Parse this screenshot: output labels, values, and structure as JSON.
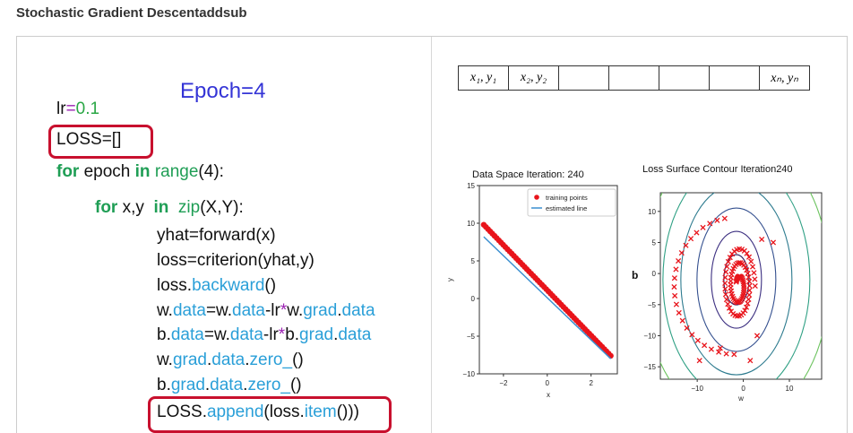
{
  "page": {
    "title": "Stochastic Gradient Descentaddsub"
  },
  "slide": {
    "epoch_title": "Epoch=4",
    "code": {
      "lr_name": "lr",
      "lr_eq": "=",
      "lr_val": "0.1",
      "loss_init": "LOSS=[]",
      "for_kw": "for",
      "for_var": " epoch ",
      "in_kw": "in",
      "range_fn": " range",
      "range_arg": "(4):",
      "for2_kw": "for",
      "for2_vars": " x,y  ",
      "in2_kw": "in",
      "zip_fn": "  zip",
      "zip_arg": "(X,Y):",
      "yhat_line": "yhat=forward(x)",
      "loss_line": "loss=criterion(yhat,y)",
      "back_obj": "loss.",
      "back_attr": "backward",
      "back_end": "()",
      "w1": "w.",
      "w2": "data",
      "w3": "=w.",
      "w4": "data",
      "w5": "-lr",
      "w6": "*",
      "w7": "w.",
      "w8": "grad",
      "w9": ".",
      "w10": "data",
      "b1": "b.",
      "b2": "data",
      "b3": "=w.",
      "b4": "data",
      "b5": "-lr",
      "b6": "*",
      "b7": "b.",
      "b8": "grad",
      "b9": ".",
      "b10": "data",
      "wz1": "w.",
      "wz2": "grad",
      "wz3": ".",
      "wz4": "data",
      "wz5": ".",
      "wz6": "zero_",
      "wz7": "()",
      "bz1": "b.",
      "bz2": "grad",
      "bz3": ".",
      "bz4": "data",
      "bz5": ".",
      "bz6": "zero_",
      "bz7": "()",
      "ap1": "LOSS.",
      "ap2": "append",
      "ap3": "(loss.",
      "ap4": "item",
      "ap5": "()))"
    },
    "table": {
      "cells": [
        "x₁, y₁",
        "x₂, y₂",
        "",
        "",
        "",
        "",
        "xₙ, yₙ"
      ]
    }
  },
  "colors": {
    "highlight": "#c8102e",
    "keyword": "#1f9e55",
    "attribute": "#2a9fd8",
    "title_blue": "#3434d6"
  },
  "chart_data": [
    {
      "type": "scatter",
      "title": "Data Space Iteration: 240",
      "xlabel": "x",
      "ylabel": "y",
      "xlim": [
        -3.1,
        3.2
      ],
      "ylim": [
        -10,
        15
      ],
      "xticks": [
        -2,
        0,
        2
      ],
      "yticks": [
        -10,
        -5,
        0,
        5,
        10,
        15
      ],
      "legend": {
        "placement": "top-right",
        "entries": [
          "training points",
          "estimated line"
        ]
      },
      "series": [
        {
          "name": "training points",
          "kind": "points",
          "x_range": [
            -2.9,
            2.9
          ],
          "slope": -3,
          "intercept": 1.1,
          "color": "#e8141b"
        },
        {
          "name": "estimated line",
          "kind": "line",
          "x": [
            -2.9,
            2.9
          ],
          "y": [
            8.2,
            -8.0
          ],
          "color": "#3b8fd0"
        }
      ]
    },
    {
      "type": "contour",
      "title": "Loss Surface Contour Iteration240",
      "xlabel": "w",
      "ylabel": "b",
      "xlim": [
        -18,
        17
      ],
      "ylim": [
        -17,
        13
      ],
      "xticks": [
        -10,
        0,
        10
      ],
      "yticks": [
        -15,
        -10,
        -5,
        0,
        5,
        10
      ],
      "marker": "x",
      "marker_color": "#e8141b"
    }
  ]
}
